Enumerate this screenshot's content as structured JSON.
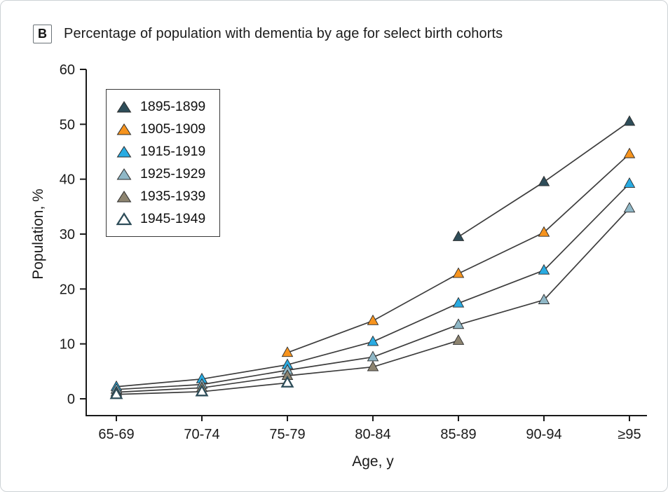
{
  "figure": {
    "panel_label": "B",
    "title": "Percentage of population with dementia by age for select birth cohorts"
  },
  "chart_data": {
    "type": "line",
    "title": "Percentage of population with dementia by age for select birth cohorts",
    "xlabel": "Age, y",
    "ylabel": "Population, %",
    "ylim": [
      0,
      60
    ],
    "yticks": [
      0,
      10,
      20,
      30,
      40,
      50,
      60
    ],
    "grid": false,
    "legend_position": "upper-left-inside",
    "line_color": "#3d3d3d",
    "categories": [
      "65-69",
      "70-74",
      "75-79",
      "80-84",
      "85-89",
      "90-94",
      "≥95"
    ],
    "series": [
      {
        "name": "1895-1899",
        "color": "#2e4d59",
        "marker": "filled",
        "values": [
          null,
          null,
          null,
          null,
          29.5,
          39.5,
          50.5
        ]
      },
      {
        "name": "1905-1909",
        "color": "#f7941e",
        "marker": "filled",
        "values": [
          null,
          null,
          8.4,
          14.2,
          22.8,
          30.3,
          44.6
        ]
      },
      {
        "name": "1915-1919",
        "color": "#29abe2",
        "marker": "filled",
        "values": [
          2.2,
          3.6,
          6.2,
          10.4,
          17.4,
          23.4,
          39.2
        ]
      },
      {
        "name": "1925-1929",
        "color": "#8fb7c6",
        "marker": "filled",
        "values": [
          1.7,
          2.6,
          5.2,
          7.6,
          13.5,
          18.0,
          34.7
        ]
      },
      {
        "name": "1935-1939",
        "color": "#8d8470",
        "marker": "filled",
        "values": [
          1.2,
          2.0,
          4.2,
          5.8,
          10.6,
          null,
          null
        ]
      },
      {
        "name": "1945-1949",
        "color": "#2e4d59",
        "marker": "open",
        "values": [
          0.8,
          1.3,
          2.9,
          null,
          null,
          null,
          null
        ]
      }
    ]
  }
}
